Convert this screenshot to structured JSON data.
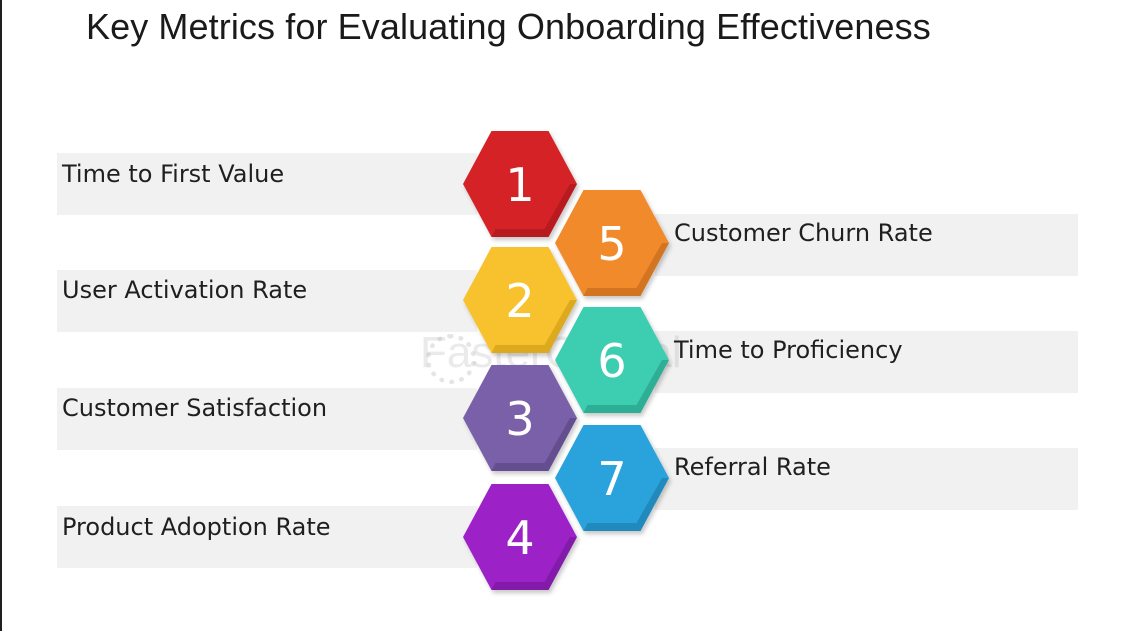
{
  "title": "Key Metrics for Evaluating Onboarding Effectiveness",
  "watermark": "FasterCapital",
  "metrics": [
    {
      "number": "1",
      "label": "Time to First Value",
      "color": "#d42027",
      "shade": "#9e1519"
    },
    {
      "number": "2",
      "label": "User Activation Rate",
      "color": "#f8c22d",
      "shade": "#c79512"
    },
    {
      "number": "3",
      "label": "Customer Satisfaction",
      "color": "#7a5ea9",
      "shade": "#54407a"
    },
    {
      "number": "4",
      "label": "Product Adoption Rate",
      "color": "#9c22c7",
      "shade": "#6e1690"
    },
    {
      "number": "5",
      "label": "Customer Churn Rate",
      "color": "#f18a2a",
      "shade": "#b9621a"
    },
    {
      "number": "6",
      "label": "Time to Proficiency",
      "color": "#3ccdb0",
      "shade": "#23977f"
    },
    {
      "number": "7",
      "label": "Referral Rate",
      "color": "#2aa3dc",
      "shade": "#1a76a3"
    }
  ]
}
